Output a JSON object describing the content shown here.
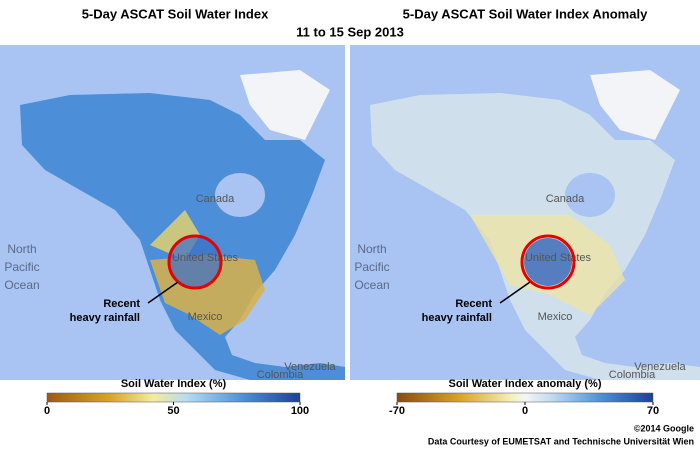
{
  "header": {
    "subtitle": "11 to 15 Sep 2013"
  },
  "panels": [
    {
      "title": "5-Day ASCAT Soil Water Index",
      "map_labels": {
        "ocean": [
          "North",
          "Pacific",
          "Ocean"
        ],
        "canada": "Canada",
        "us": "United States",
        "mexico": "Mexico",
        "venezuela": "Venezuela",
        "colombia": "Colombia"
      },
      "annotation": [
        "Recent",
        "heavy rainfall"
      ],
      "colorbar": {
        "title": "Soil Water Index (%)",
        "range": [
          0,
          100
        ],
        "ticks": [
          0,
          50,
          100
        ]
      }
    },
    {
      "title": "5-Day ASCAT Soil Water Index Anomaly",
      "map_labels": {
        "ocean": [
          "North",
          "Pacific",
          "Ocean"
        ],
        "canada": "Canada",
        "us": "United States",
        "mexico": "Mexico",
        "venezuela": "Venezuela",
        "colombia": "Colombia"
      },
      "annotation": [
        "Recent",
        "heavy rainfall"
      ],
      "colorbar": {
        "title": "Soil Water Index anomaly (%)",
        "range": [
          -70,
          70
        ],
        "ticks": [
          -70,
          0,
          70
        ]
      }
    }
  ],
  "footer": {
    "copyright": "©2014 Google",
    "credit": "Data Courtesy of EUMETSAT and Technische Universität Wien"
  }
}
